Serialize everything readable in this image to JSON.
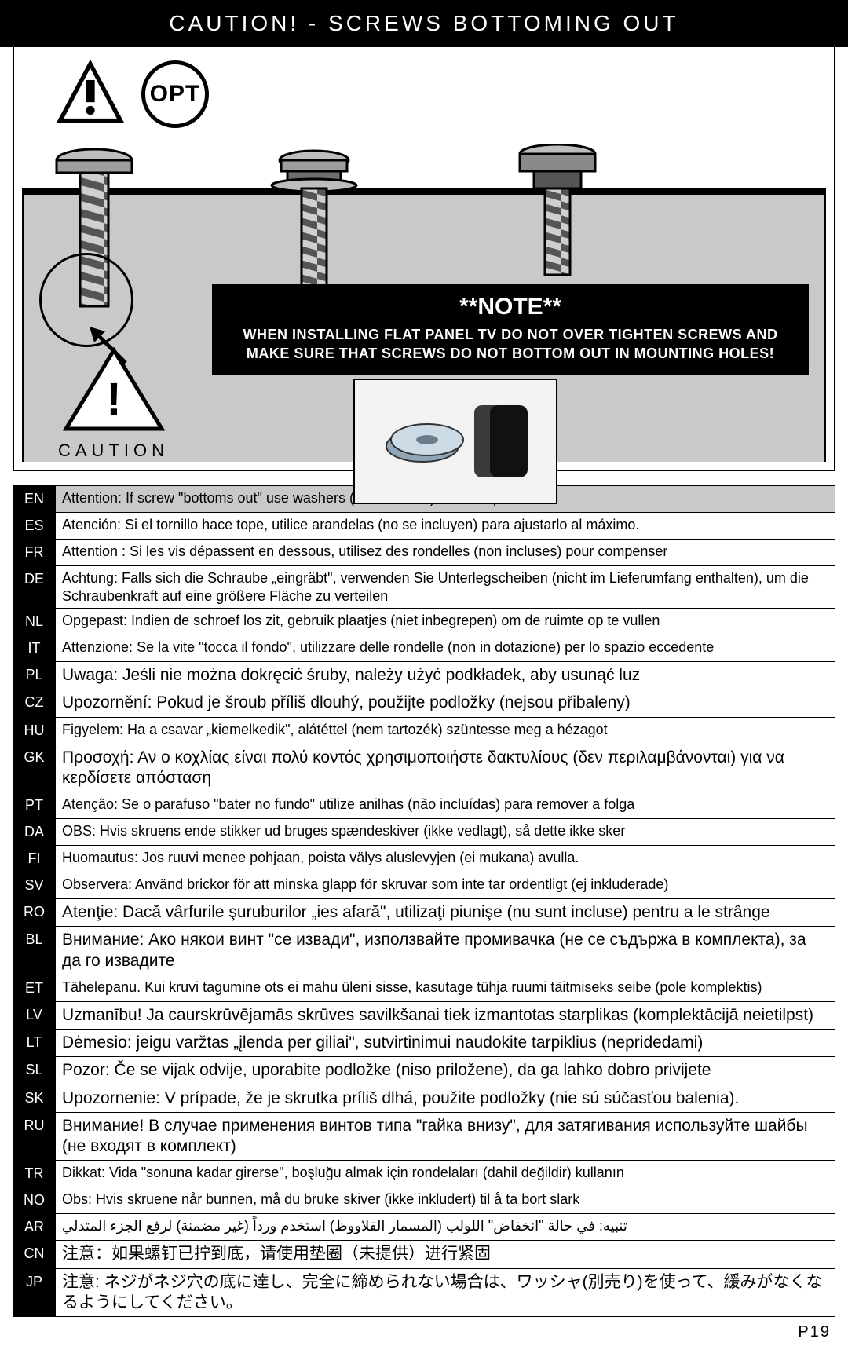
{
  "title": "CAUTION!  - SCREWS BOTTOMING OUT",
  "opt_label": "OPT",
  "note": {
    "title": "**NOTE**",
    "body": "WHEN INSTALLING FLAT PANEL TV DO NOT OVER TIGHTEN SCREWS AND MAKE SURE THAT SCREWS DO NOT BOTTOM OUT IN MOUNTING HOLES!"
  },
  "caution_label": "CAUTION",
  "page_number": "P19",
  "colors": {
    "title_bg": "#000000",
    "title_fg": "#ffffff",
    "plate_fill": "#c9c9c9",
    "border": "#000000",
    "page_bg": "#ffffff"
  },
  "table": {
    "header_row_bg": "#c9c9c9",
    "code_bg": "#000000",
    "code_fg": "#ffffff",
    "font_size_normal": 18,
    "font_size_big": 21,
    "rows": [
      {
        "code": "EN",
        "text": "Attention: If screw \"bottoms out\" use washers (not included) to take up slack",
        "header": true
      },
      {
        "code": "ES",
        "text": "Atención: Si el tornillo hace tope, utilice arandelas (no se incluyen) para ajustarlo al máximo."
      },
      {
        "code": "FR",
        "text": "Attention : Si les vis dépassent en dessous, utilisez des rondelles (non incluses) pour compenser"
      },
      {
        "code": "DE",
        "text": "Achtung: Falls sich die Schraube „eingräbt\", verwenden Sie Unterlegscheiben (nicht im Lieferumfang enthalten), um die Schraubenkraft auf eine größere Fläche zu verteilen"
      },
      {
        "code": "NL",
        "text": "Opgepast: Indien de schroef los zit, gebruik plaatjes (niet inbegrepen) om de ruimte op te vullen"
      },
      {
        "code": "IT",
        "text": "Attenzione: Se la vite \"tocca il fondo\", utilizzare delle rondelle (non in dotazione) per lo spazio eccedente"
      },
      {
        "code": "PL",
        "text": "Uwaga: Jeśli nie można dokręcić śruby, należy użyć podkładek, aby usunąć luz",
        "big": true
      },
      {
        "code": "CZ",
        "text": "Upozornění: Pokud je šroub příliš dlouhý, použijte podložky (nejsou přibaleny)",
        "big": true
      },
      {
        "code": "HU",
        "text": "Figyelem: Ha a csavar „kiemelkedik\", alátéttel (nem tartozék) szüntesse meg a hézagot"
      },
      {
        "code": "GK",
        "text": "Προσοχή: Αν ο κοχλίας είναι πολύ κοντός χρησιμοποιήστε δακτυλίους (δεν περιλαμβάνονται) για να κερδίσετε απόσταση",
        "big": true
      },
      {
        "code": "PT",
        "text": "Atenção: Se o parafuso \"bater no fundo\" utilize anilhas (não incluídas) para remover a folga"
      },
      {
        "code": "DA",
        "text": "OBS: Hvis skruens ende stikker ud bruges spændeskiver (ikke vedlagt), så dette ikke sker"
      },
      {
        "code": "FI",
        "text": "Huomautus: Jos ruuvi menee pohjaan, poista välys aluslevyjen (ei mukana) avulla."
      },
      {
        "code": "SV",
        "text": "Observera: Använd brickor för att minska glapp för skruvar som inte tar ordentligt (ej inkluderade)"
      },
      {
        "code": "RO",
        "text": "Atenţie: Dacă vârfurile şuruburilor „ies afară\", utilizaţi piunişe (nu sunt incluse) pentru a le strânge",
        "big": true
      },
      {
        "code": "BL",
        "text": "Внимание: Ако някои винт \"се извади\", използвайте промивачка (не се съдържа в комплекта), за да го извадите",
        "big": true
      },
      {
        "code": "ET",
        "text": "Tähelepanu. Kui kruvi tagumine ots ei mahu üleni sisse, kasutage tühja ruumi täitmiseks seibe (pole komplektis)"
      },
      {
        "code": "LV",
        "text": "Uzmanību! Ja caurskrūvējamās skrūves savilkšanai tiek izmantotas starplikas (komplektācijā neietilpst)",
        "big": true
      },
      {
        "code": "LT",
        "text": "Dėmesio: jeigu varžtas „įlenda per giliai\", sutvirtinimui naudokite tarpiklius (nepridedami)",
        "big": true
      },
      {
        "code": "SL",
        "text": "Pozor: Če se vijak odvije, uporabite podložke (niso priložene), da ga lahko dobro privijete",
        "big": true
      },
      {
        "code": "SK",
        "text": "Upozornenie: V prípade, že je skrutka príliš dlhá, použite podložky (nie sú súčasťou balenia).",
        "big": true
      },
      {
        "code": "RU",
        "text": "Внимание! В случае применения винтов типа \"гайка внизу\", для затягивания используйте шайбы (не входят в комплект)",
        "big": true
      },
      {
        "code": "TR",
        "text": "Dikkat: Vida \"sonuna kadar girerse\", boşluğu almak için rondelaları (dahil değildir) kullanın"
      },
      {
        "code": "NO",
        "text": "Obs: Hvis skruene når bunnen, må du bruke skiver (ikke inkludert) til å ta bort slark"
      },
      {
        "code": "AR",
        "text": "تنبيه: في حالة \"انخفاض\" اللولب (المسمار القلاووظ) استخدم ورداً (غير مضمنة) لرفع الجزء المتدلي"
      },
      {
        "code": "CN",
        "text": "注意：如果螺钉已拧到底，请使用垫圈（未提供）进行紧固",
        "big": true
      },
      {
        "code": "JP",
        "text": "注意: ネジがネジ穴の底に達し、完全に締められない場合は、ワッシャ(別売り)を使って、緩みがなくなるようにしてください。",
        "big": true
      }
    ]
  }
}
